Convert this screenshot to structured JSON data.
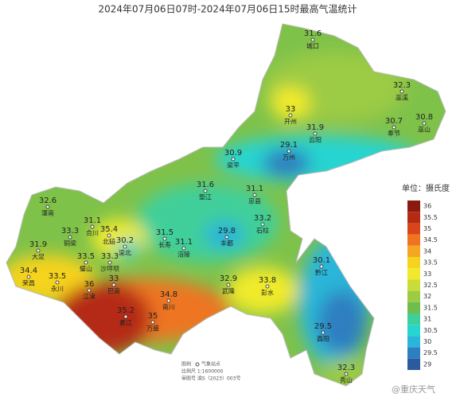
{
  "title": "2024年07月06日07时-2024年07月06日15时最高气温统计",
  "stations": [
    {
      "name": "城口",
      "value": 31.6
    },
    {
      "name": "巫溪",
      "value": 32.3
    },
    {
      "name": "开州",
      "value": 33
    },
    {
      "name": "云阳",
      "value": 31.9
    },
    {
      "name": "奉节",
      "value": 30.7
    },
    {
      "name": "巫山",
      "value": 30.8
    },
    {
      "name": "万州",
      "value": 29.1
    },
    {
      "name": "梁平",
      "value": 30.9
    },
    {
      "name": "垫江",
      "value": 31.6
    },
    {
      "name": "忠县",
      "value": 31.1
    },
    {
      "name": "石柱",
      "value": 33.2
    },
    {
      "name": "潼南",
      "value": 32.6
    },
    {
      "name": "合川",
      "value": 31.1
    },
    {
      "name": "铜梁",
      "value": 33.3
    },
    {
      "name": "北碚",
      "value": 35.4
    },
    {
      "name": "渝北",
      "value": 30.2
    },
    {
      "name": "长寿",
      "value": 31.5
    },
    {
      "name": "涪陵",
      "value": 31.1
    },
    {
      "name": "丰都",
      "value": 29.8
    },
    {
      "name": "大足",
      "value": 31.9
    },
    {
      "name": "璧山",
      "value": 33.5
    },
    {
      "name": "沙坪坝",
      "value": 33.3
    },
    {
      "name": "荣昌",
      "value": 34.4
    },
    {
      "name": "永川",
      "value": 33.5
    },
    {
      "name": "巴南",
      "value": 33
    },
    {
      "name": "江津",
      "value": 36
    },
    {
      "name": "武隆",
      "value": 32.9
    },
    {
      "name": "彭水",
      "value": 33.8
    },
    {
      "name": "黔江",
      "value": 30.1
    },
    {
      "name": "南川",
      "value": 34.8
    },
    {
      "name": "綦江",
      "value": 35.2
    },
    {
      "name": "万盛",
      "value": 35
    },
    {
      "name": "酉阳",
      "value": 29.5
    },
    {
      "name": "秀山",
      "value": 32.3
    }
  ],
  "legend": {
    "title": "单位：摄氏度",
    "levels": [
      {
        "label": 36,
        "color": "#8b1a0e"
      },
      {
        "label": 35.5,
        "color": "#b52a12"
      },
      {
        "label": 35,
        "color": "#d9451a"
      },
      {
        "label": 34.5,
        "color": "#ee7420"
      },
      {
        "label": 34,
        "color": "#f5a623"
      },
      {
        "label": 33.5,
        "color": "#f6d31e"
      },
      {
        "label": 33,
        "color": "#f0ea2a"
      },
      {
        "label": 32.5,
        "color": "#c9dc3a"
      },
      {
        "label": 32,
        "color": "#9ccb44"
      },
      {
        "label": 31.5,
        "color": "#6fbd4c"
      },
      {
        "label": 31,
        "color": "#3fcf9a"
      },
      {
        "label": 30.5,
        "color": "#27d4d0"
      },
      {
        "label": 30,
        "color": "#29b6d8"
      },
      {
        "label": 29.5,
        "color": "#2d7fc0"
      },
      {
        "label": 29,
        "color": "#2b5a9e"
      }
    ]
  },
  "notes": {
    "legend_label": "图例",
    "station_label": "气象站点",
    "scale": "比例尺 1:1600000",
    "approval": "审图号 渝S（2023）003号"
  },
  "watermark": "@重庆天气"
}
